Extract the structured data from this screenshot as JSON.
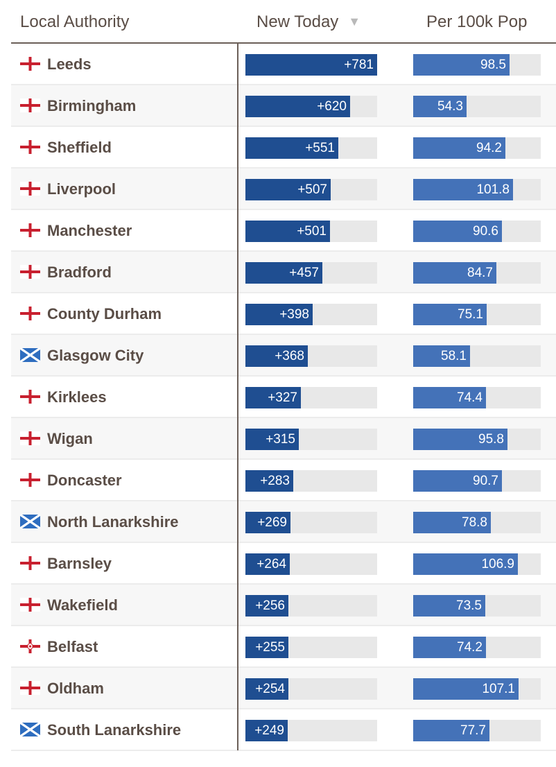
{
  "header": {
    "local_authority": "Local Authority",
    "new_today": "New Today",
    "sort_indicator": "▼",
    "per_100k": "Per 100k Pop"
  },
  "scale": {
    "new_today_max": 781,
    "per_100k_max": 130
  },
  "colors": {
    "new_today_bar": "#1f4e91",
    "per_100k_bar": "#4472b8",
    "england_cross": "#c8202f",
    "scotland_blue": "#2e6dbf"
  },
  "rows": [
    {
      "name": "Leeds",
      "flag": "england-flag-icon",
      "new_today": "+781",
      "new_value": 781,
      "per_100k": "98.5",
      "per_value": 98.5
    },
    {
      "name": "Birmingham",
      "flag": "england-flag-icon",
      "new_today": "+620",
      "new_value": 620,
      "per_100k": "54.3",
      "per_value": 54.3
    },
    {
      "name": "Sheffield",
      "flag": "england-flag-icon",
      "new_today": "+551",
      "new_value": 551,
      "per_100k": "94.2",
      "per_value": 94.2
    },
    {
      "name": "Liverpool",
      "flag": "england-flag-icon",
      "new_today": "+507",
      "new_value": 507,
      "per_100k": "101.8",
      "per_value": 101.8
    },
    {
      "name": "Manchester",
      "flag": "england-flag-icon",
      "new_today": "+501",
      "new_value": 501,
      "per_100k": "90.6",
      "per_value": 90.6
    },
    {
      "name": "Bradford",
      "flag": "england-flag-icon",
      "new_today": "+457",
      "new_value": 457,
      "per_100k": "84.7",
      "per_value": 84.7
    },
    {
      "name": "County Durham",
      "flag": "england-flag-icon",
      "new_today": "+398",
      "new_value": 398,
      "per_100k": "75.1",
      "per_value": 75.1
    },
    {
      "name": "Glasgow City",
      "flag": "scotland-flag-icon",
      "new_today": "+368",
      "new_value": 368,
      "per_100k": "58.1",
      "per_value": 58.1
    },
    {
      "name": "Kirklees",
      "flag": "england-flag-icon",
      "new_today": "+327",
      "new_value": 327,
      "per_100k": "74.4",
      "per_value": 74.4
    },
    {
      "name": "Wigan",
      "flag": "england-flag-icon",
      "new_today": "+315",
      "new_value": 315,
      "per_100k": "95.8",
      "per_value": 95.8
    },
    {
      "name": "Doncaster",
      "flag": "england-flag-icon",
      "new_today": "+283",
      "new_value": 283,
      "per_100k": "90.7",
      "per_value": 90.7
    },
    {
      "name": "North Lanarkshire",
      "flag": "scotland-flag-icon",
      "new_today": "+269",
      "new_value": 269,
      "per_100k": "78.8",
      "per_value": 78.8
    },
    {
      "name": "Barnsley",
      "flag": "england-flag-icon",
      "new_today": "+264",
      "new_value": 264,
      "per_100k": "106.9",
      "per_value": 106.9
    },
    {
      "name": "Wakefield",
      "flag": "england-flag-icon",
      "new_today": "+256",
      "new_value": 256,
      "per_100k": "73.5",
      "per_value": 73.5
    },
    {
      "name": "Belfast",
      "flag": "northern-ireland-flag-icon",
      "new_today": "+255",
      "new_value": 255,
      "per_100k": "74.2",
      "per_value": 74.2
    },
    {
      "name": "Oldham",
      "flag": "england-flag-icon",
      "new_today": "+254",
      "new_value": 254,
      "per_100k": "107.1",
      "per_value": 107.1
    },
    {
      "name": "South Lanarkshire",
      "flag": "scotland-flag-icon",
      "new_today": "+249",
      "new_value": 249,
      "per_100k": "77.7",
      "per_value": 77.7
    }
  ]
}
